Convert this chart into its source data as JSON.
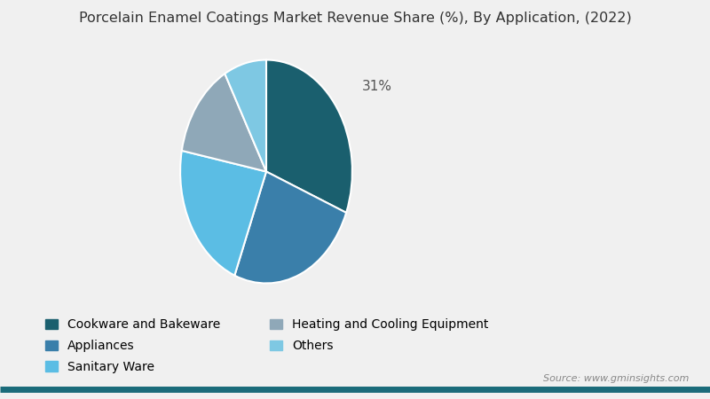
{
  "title": "Porcelain Enamel Coatings Market Revenue Share (%), By Application, (2022)",
  "labels": [
    "Cookware and Bakeware",
    "Appliances",
    "Sanitary Ware",
    "Heating and Cooling Equipment",
    "Others"
  ],
  "values": [
    31,
    25,
    22,
    14,
    8
  ],
  "colors": [
    "#1a5f6e",
    "#3a7faa",
    "#5bbde4",
    "#8fa8b8",
    "#7ec8e3"
  ],
  "label_shown": "31%",
  "source_text": "Source: www.gminsights.com",
  "background_color": "#f0f0f0",
  "title_fontsize": 11.5,
  "legend_fontsize": 10,
  "startangle": 90
}
